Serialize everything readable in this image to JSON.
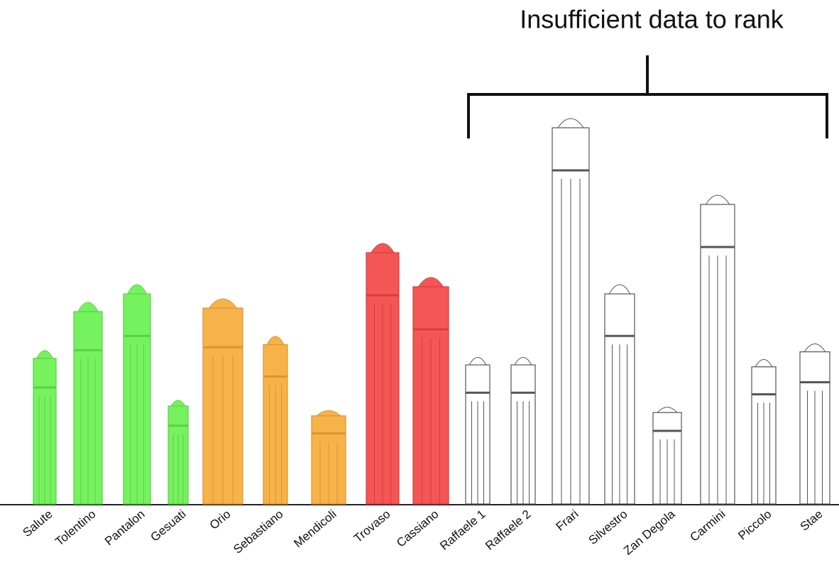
{
  "annotation": "Insufficient data to rank",
  "towers": [
    {
      "label": "Salute"
    },
    {
      "label": "Tolentino"
    },
    {
      "label": "Pantalon"
    },
    {
      "label": "Gesuati"
    },
    {
      "label": "Orio"
    },
    {
      "label": "Sebastiano"
    },
    {
      "label": "Mendicoli"
    },
    {
      "label": "Trovaso"
    },
    {
      "label": "Cassiano"
    },
    {
      "label": "Raffaele 1"
    },
    {
      "label": "Raffaele 2"
    },
    {
      "label": "Frari"
    },
    {
      "label": "Silvestro"
    },
    {
      "label": "Zan Degola"
    },
    {
      "label": "Carmini"
    },
    {
      "label": "Piccolo"
    },
    {
      "label": "Stae"
    }
  ]
}
